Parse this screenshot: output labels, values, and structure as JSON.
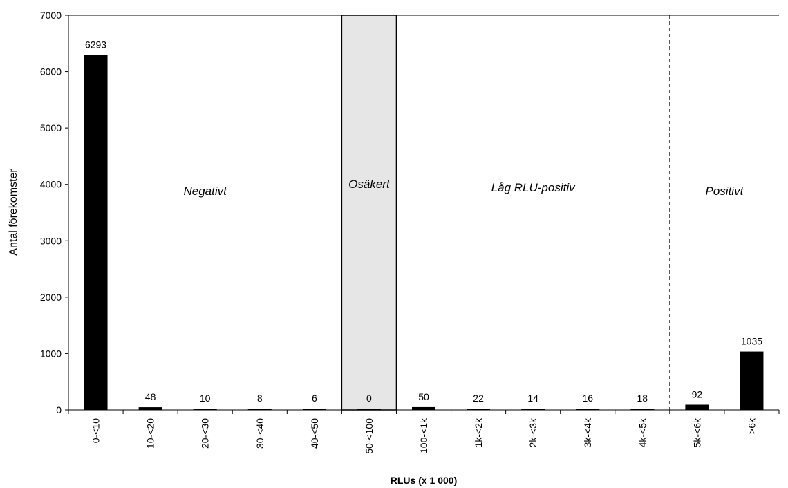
{
  "chart_data": {
    "type": "bar",
    "categories": [
      "0-<10",
      "10-<20",
      "20-<30",
      "30-<40",
      "40-<50",
      "50-<100",
      "100-<1k",
      "1k-<2k",
      "2k-<3k",
      "3k-<4k",
      "4k-<5k",
      "5k-<6k",
      ">6k"
    ],
    "values": [
      6293,
      48,
      10,
      8,
      6,
      0,
      50,
      22,
      14,
      16,
      18,
      92,
      1035
    ],
    "data_labels": [
      "6293",
      "48",
      "10",
      "8",
      "6",
      "0",
      "50",
      "22",
      "14",
      "16",
      "18",
      "92",
      "1035"
    ],
    "xlabel": "RLUs (x 1 000)",
    "ylabel": "Antal förekomster",
    "ylim": [
      0,
      7000
    ],
    "yticks": [
      0,
      1000,
      2000,
      3000,
      4000,
      5000,
      6000,
      7000
    ],
    "grid": false,
    "legend": "none",
    "bar_color": "#000000",
    "regions": [
      {
        "label": "Negativt",
        "from_category": 0,
        "to_category": 4
      },
      {
        "label": "Osäkert",
        "from_category": 5,
        "to_category": 5,
        "shaded": true,
        "fill": "#e6e6e6"
      },
      {
        "label": "Låg RLU-positiv",
        "from_category": 6,
        "to_category": 10
      },
      {
        "label": "Positivt",
        "from_category": 11,
        "to_category": 12
      }
    ],
    "divider": {
      "between_categories": [
        10,
        11
      ],
      "style": "dashed"
    }
  }
}
